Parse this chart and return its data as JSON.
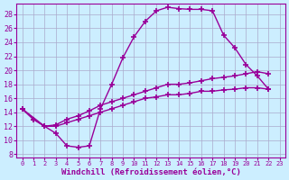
{
  "background_color": "#cceeff",
  "grid_color": "#aaaacc",
  "line_color": "#990099",
  "marker": "+",
  "markersize": 4,
  "markeredgewidth": 1.2,
  "linewidth": 1.0,
  "xlabel": "Windchill (Refroidissement éolien,°C)",
  "xlabel_fontsize": 6.5,
  "xlim": [
    -0.5,
    23.5
  ],
  "ylim": [
    7.5,
    29.5
  ],
  "yticks": [
    8,
    10,
    12,
    14,
    16,
    18,
    20,
    22,
    24,
    26,
    28
  ],
  "xticks": [
    0,
    1,
    2,
    3,
    4,
    5,
    6,
    7,
    8,
    9,
    10,
    11,
    12,
    13,
    14,
    15,
    16,
    17,
    18,
    19,
    20,
    21,
    22,
    23
  ],
  "series1": [
    [
      0,
      14.5
    ],
    [
      1,
      13.0
    ],
    [
      2,
      12.0
    ],
    [
      3,
      11.0
    ],
    [
      4,
      9.2
    ],
    [
      5,
      9.0
    ],
    [
      6,
      9.2
    ],
    [
      7,
      14.5
    ],
    [
      8,
      18.0
    ],
    [
      9,
      21.8
    ],
    [
      10,
      24.8
    ],
    [
      11,
      27.0
    ],
    [
      12,
      28.5
    ],
    [
      13,
      29.0
    ],
    [
      14,
      28.8
    ],
    [
      15,
      28.7
    ],
    [
      16,
      28.7
    ],
    [
      17,
      28.5
    ],
    [
      18,
      25.0
    ],
    [
      19,
      23.2
    ],
    [
      20,
      20.8
    ],
    [
      21,
      19.2
    ],
    [
      22,
      17.3
    ]
  ],
  "series2": [
    [
      0,
      14.5
    ],
    [
      2,
      12.0
    ],
    [
      3,
      12.2
    ],
    [
      4,
      13.0
    ],
    [
      5,
      13.5
    ],
    [
      6,
      14.2
    ],
    [
      7,
      15.0
    ],
    [
      8,
      15.5
    ],
    [
      9,
      16.0
    ],
    [
      10,
      16.5
    ],
    [
      11,
      17.0
    ],
    [
      12,
      17.5
    ],
    [
      13,
      18.0
    ],
    [
      14,
      18.0
    ],
    [
      15,
      18.2
    ],
    [
      16,
      18.5
    ],
    [
      17,
      18.8
    ],
    [
      18,
      19.0
    ],
    [
      19,
      19.2
    ],
    [
      20,
      19.5
    ],
    [
      21,
      19.8
    ],
    [
      22,
      19.5
    ]
  ],
  "series3": [
    [
      0,
      14.5
    ],
    [
      1,
      13.0
    ],
    [
      2,
      12.0
    ],
    [
      3,
      12.0
    ],
    [
      4,
      12.5
    ],
    [
      5,
      13.0
    ],
    [
      6,
      13.5
    ],
    [
      7,
      14.0
    ],
    [
      8,
      14.5
    ],
    [
      9,
      15.0
    ],
    [
      10,
      15.5
    ],
    [
      11,
      16.0
    ],
    [
      12,
      16.2
    ],
    [
      13,
      16.5
    ],
    [
      14,
      16.5
    ],
    [
      15,
      16.7
    ],
    [
      16,
      17.0
    ],
    [
      17,
      17.0
    ],
    [
      18,
      17.2
    ],
    [
      19,
      17.3
    ],
    [
      20,
      17.5
    ],
    [
      21,
      17.5
    ],
    [
      22,
      17.3
    ]
  ]
}
